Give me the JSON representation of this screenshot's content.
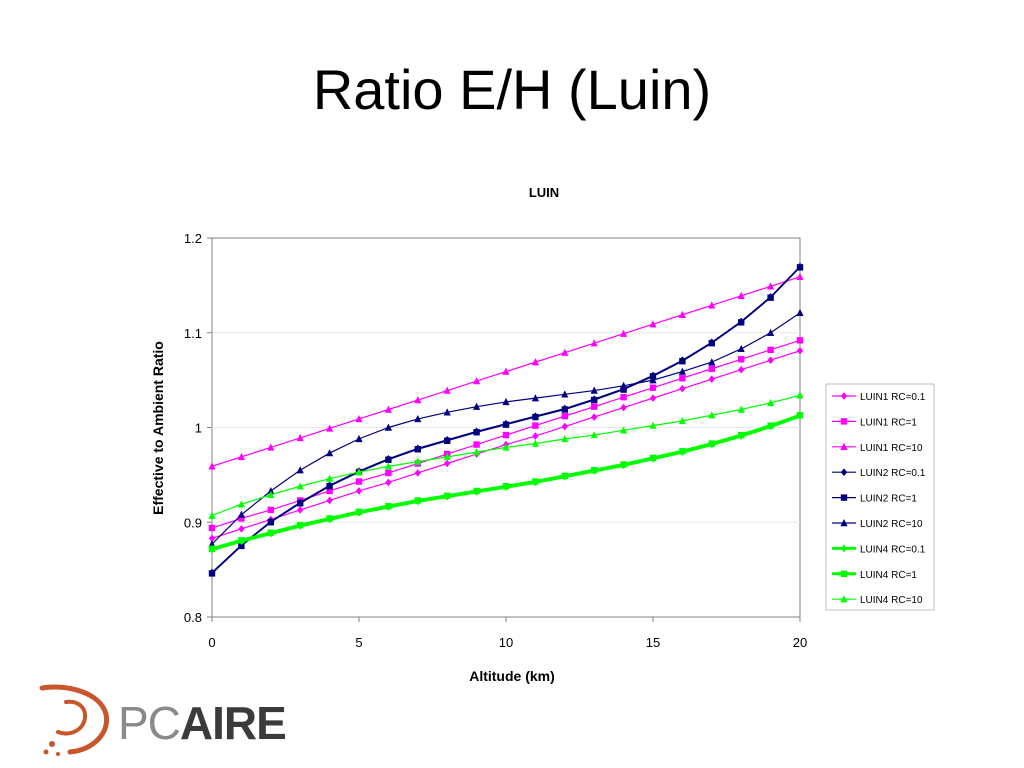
{
  "slide": {
    "title": "Ratio E/H (Luin)"
  },
  "logo": {
    "part1": "PC",
    "part2": "AIRE",
    "accent_color": "#c8552b"
  },
  "chart_data": {
    "type": "line",
    "title": "LUIN",
    "xlabel": "Altitude (km)",
    "ylabel": "Effective to Ambient Ratio",
    "xlim": [
      0,
      20
    ],
    "ylim": [
      0.8,
      1.2
    ],
    "xticks": [
      0,
      5,
      10,
      15,
      20
    ],
    "yticks": [
      0.8,
      0.9,
      1,
      1.1,
      1.2
    ],
    "ytick_labels": [
      "0.8",
      "0.9",
      "1",
      "1.1",
      "1.2"
    ],
    "grid": "horizontal",
    "legend_position": "right",
    "x": [
      0,
      1,
      2,
      3,
      4,
      5,
      6,
      7,
      8,
      9,
      10,
      11,
      12,
      13,
      14,
      15,
      16,
      17,
      18,
      19,
      20
    ],
    "series": [
      {
        "name": "LUIN1 RC=0.1",
        "color": "#ff00ff",
        "marker": "diamond",
        "values": [
          0.883,
          0.893,
          0.903,
          0.913,
          0.923,
          0.933,
          0.942,
          0.952,
          0.962,
          0.972,
          0.982,
          0.991,
          1.001,
          1.011,
          1.021,
          1.031,
          1.041,
          1.051,
          1.061,
          1.071,
          1.081
        ]
      },
      {
        "name": "LUIN1 RC=1",
        "color": "#ff00ff",
        "marker": "square",
        "values": [
          0.894,
          0.904,
          0.913,
          0.923,
          0.933,
          0.943,
          0.952,
          0.962,
          0.972,
          0.982,
          0.992,
          1.002,
          1.012,
          1.022,
          1.032,
          1.042,
          1.052,
          1.062,
          1.072,
          1.082,
          1.092
        ]
      },
      {
        "name": "LUIN1 RC=10",
        "color": "#ff00ff",
        "marker": "triangle",
        "values": [
          0.959,
          0.969,
          0.979,
          0.989,
          0.999,
          1.009,
          1.019,
          1.029,
          1.039,
          1.049,
          1.059,
          1.069,
          1.079,
          1.089,
          1.099,
          1.109,
          1.119,
          1.129,
          1.139,
          1.149,
          1.159
        ]
      },
      {
        "name": "LUIN2 RC=0.1",
        "color": "#000080",
        "marker": "diamond",
        "values": [
          0.847,
          0.876,
          0.901,
          0.921,
          0.939,
          0.954,
          0.967,
          0.978,
          0.987,
          0.996,
          1.004,
          1.012,
          1.02,
          1.03,
          1.041,
          1.055,
          1.071,
          1.09,
          1.112,
          1.138,
          1.17
        ]
      },
      {
        "name": "LUIN2 RC=1",
        "color": "#000080",
        "marker": "square",
        "values": [
          0.846,
          0.875,
          0.9,
          0.92,
          0.938,
          0.953,
          0.966,
          0.977,
          0.986,
          0.995,
          1.003,
          1.011,
          1.019,
          1.029,
          1.04,
          1.054,
          1.07,
          1.089,
          1.111,
          1.137,
          1.169
        ]
      },
      {
        "name": "LUIN2 RC=10",
        "color": "#000080",
        "marker": "triangle",
        "values": [
          0.877,
          0.908,
          0.933,
          0.955,
          0.973,
          0.988,
          1.0,
          1.009,
          1.016,
          1.022,
          1.027,
          1.031,
          1.035,
          1.039,
          1.044,
          1.05,
          1.059,
          1.069,
          1.083,
          1.1,
          1.121
        ]
      },
      {
        "name": "LUIN4 RC=0.1",
        "color": "#00ff00",
        "marker": "diamond",
        "values": [
          0.871,
          0.88,
          0.888,
          0.896,
          0.903,
          0.91,
          0.916,
          0.922,
          0.927,
          0.932,
          0.937,
          0.942,
          0.948,
          0.954,
          0.96,
          0.967,
          0.974,
          0.982,
          0.991,
          1.001,
          1.012
        ]
      },
      {
        "name": "LUIN4 RC=1",
        "color": "#00ff00",
        "marker": "square",
        "values": [
          0.872,
          0.881,
          0.889,
          0.897,
          0.904,
          0.911,
          0.917,
          0.923,
          0.928,
          0.933,
          0.938,
          0.943,
          0.949,
          0.955,
          0.961,
          0.968,
          0.975,
          0.983,
          0.992,
          1.002,
          1.013
        ]
      },
      {
        "name": "LUIN4 RC=10",
        "color": "#00ff00",
        "marker": "triangle",
        "values": [
          0.907,
          0.919,
          0.929,
          0.938,
          0.946,
          0.953,
          0.959,
          0.964,
          0.969,
          0.974,
          0.979,
          0.983,
          0.988,
          0.992,
          0.997,
          1.002,
          1.007,
          1.013,
          1.019,
          1.026,
          1.034
        ]
      }
    ]
  }
}
